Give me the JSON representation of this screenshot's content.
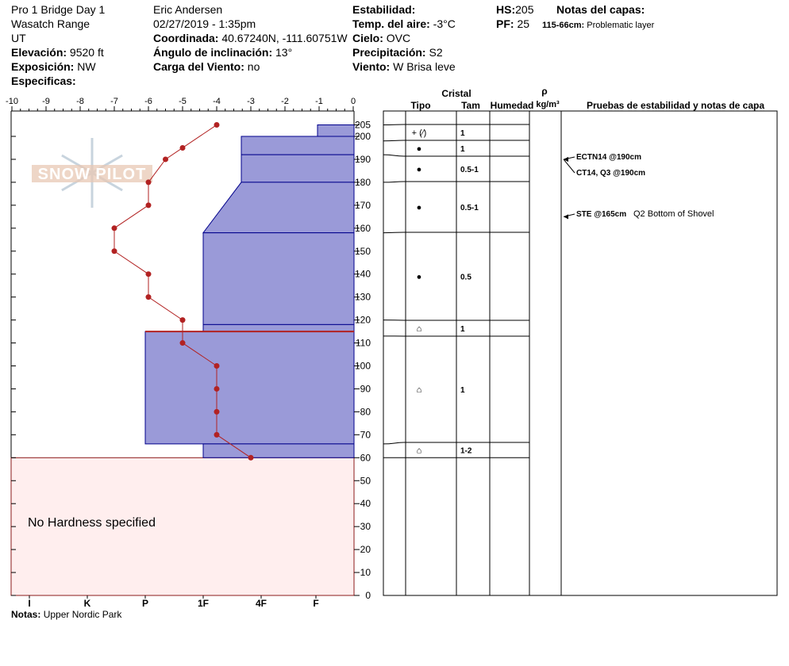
{
  "header": {
    "site_name": "Pro 1 Bridge Day 1",
    "range": "Wasatch Range",
    "state": "UT",
    "elevation_label": "Elevación:",
    "elevation_value": "9520 ft",
    "aspect_label": "Exposición:",
    "aspect_value": "NW",
    "specifics_label": "Especificas:",
    "observer": "Eric Andersen",
    "datetime": "02/27/2019 - 1:35pm",
    "coord_label": "Coordinada:",
    "coord_value": "40.67240N, -111.60751W",
    "incline_label": "Ángulo de inclinación:",
    "incline_value": "13°",
    "wind_load_label": "Carga del Viento:",
    "wind_load_value": "no",
    "stability_label": "Estabilidad:",
    "air_temp_label": "Temp. del aire:",
    "air_temp_value": "-3°C",
    "sky_label": "Cielo:",
    "sky_value": "OVC",
    "precip_label": "Precipitación:",
    "precip_value": "S2",
    "wind_label": "Viento:",
    "wind_value": "W Brisa leve",
    "hs_label": "HS:",
    "hs_value": "205",
    "pf_label": "PF:",
    "pf_value": "25",
    "layer_notes_label": "Notas del capas:",
    "layer_note_range": "115-66cm:",
    "layer_note_text": "Problematic layer"
  },
  "watermark": "SNOW PILOT",
  "no_hardness_text": "No Hardness specified",
  "notes_label": "Notas:",
  "notes_value": "Upper Nordic Park",
  "table_headers": {
    "crystal": "Cristal",
    "type": "Tipo",
    "size": "Tam",
    "moisture": "Humedad",
    "rho": "ρ",
    "density_unit": "kg/m³",
    "tests": "Pruebas de estabilidad y notas de capa"
  },
  "colors": {
    "hardness_fill": "#9a9ad8",
    "hardness_stroke": "#00008b",
    "temp_line": "#b22222",
    "no_hardness_fill": "#ffeeee",
    "problem_layer": "#b22222",
    "watermark": "#c8d4de"
  },
  "chart_data": {
    "type": "snow_profile",
    "height_axis": {
      "min": 0,
      "max": 215,
      "ticks": [
        0,
        10,
        20,
        30,
        40,
        50,
        60,
        70,
        80,
        90,
        100,
        110,
        120,
        130,
        140,
        150,
        160,
        170,
        180,
        190,
        200,
        205
      ],
      "tick_labels": [
        "0",
        "10",
        "20",
        "30",
        "40",
        "50",
        "60",
        "70",
        "80",
        "90",
        "100",
        "110",
        "120",
        "130",
        "140",
        "150",
        "160",
        "170",
        "180",
        "190",
        "200",
        "205"
      ]
    },
    "temperature_axis": {
      "min": -10,
      "max": 0,
      "ticks": [
        -10,
        -9,
        -8,
        -7,
        -6,
        -5,
        -4,
        -3,
        -2,
        -1,
        0
      ],
      "tick_labels": [
        "-10",
        "-9",
        "-8",
        "-7",
        "-6",
        "-5",
        "-4",
        "-3",
        "-2",
        "-1",
        "0"
      ]
    },
    "hardness_axis": {
      "labels": [
        "I",
        "K",
        "P",
        "1F",
        "4F",
        "F"
      ]
    },
    "temperature_profile": [
      {
        "h": 205,
        "t": -4
      },
      {
        "h": 195,
        "t": -5
      },
      {
        "h": 190,
        "t": -5.5
      },
      {
        "h": 180,
        "t": -6
      },
      {
        "h": 170,
        "t": -6
      },
      {
        "h": 160,
        "t": -7
      },
      {
        "h": 150,
        "t": -7
      },
      {
        "h": 140,
        "t": -6
      },
      {
        "h": 130,
        "t": -6
      },
      {
        "h": 120,
        "t": -5
      },
      {
        "h": 110,
        "t": -5
      },
      {
        "h": 100,
        "t": -4
      },
      {
        "h": 90,
        "t": -4
      },
      {
        "h": 80,
        "t": -4
      },
      {
        "h": 70,
        "t": -4
      },
      {
        "h": 60,
        "t": -3
      }
    ],
    "hardness_layers": [
      {
        "top": 205,
        "bottom": 200,
        "top_hardness": "F",
        "bottom_hardness": "F"
      },
      {
        "top": 200,
        "bottom": 192,
        "top_hardness": "4F",
        "bottom_hardness": "4F"
      },
      {
        "top": 192,
        "bottom": 180,
        "top_hardness": "4F",
        "bottom_hardness": "4F"
      },
      {
        "top": 180,
        "bottom": 158,
        "top_hardness": "4F",
        "bottom_hardness": "1F"
      },
      {
        "top": 158,
        "bottom": 118,
        "top_hardness": "1F",
        "bottom_hardness": "1F"
      },
      {
        "top": 118,
        "bottom": 115,
        "top_hardness": "1F",
        "bottom_hardness": "1F"
      },
      {
        "top": 115,
        "bottom": 66,
        "top_hardness": "P",
        "bottom_hardness": "P"
      },
      {
        "top": 66,
        "bottom": 60,
        "top_hardness": "1F",
        "bottom_hardness": "1F"
      }
    ],
    "problematic_layer": {
      "top": 115,
      "bottom": 66
    },
    "no_hardness_below": 60,
    "crystal_layers": [
      {
        "top": 205,
        "bottom": 198,
        "type_symbol": "+ (⁄)",
        "size": "1",
        "moisture": ""
      },
      {
        "top": 198,
        "bottom": 192,
        "type_symbol": "●",
        "size": "1",
        "moisture": ""
      },
      {
        "top": 192,
        "bottom": 180,
        "type_symbol": "●",
        "size": "0.5-1",
        "moisture": ""
      },
      {
        "top": 180,
        "bottom": 158,
        "type_symbol": "●",
        "size": "0.5-1",
        "moisture": ""
      },
      {
        "top": 158,
        "bottom": 120,
        "type_symbol": "●",
        "size": "0.5",
        "moisture": ""
      },
      {
        "top": 120,
        "bottom": 113,
        "type_symbol": "⌂",
        "size": "1",
        "moisture": ""
      },
      {
        "top": 113,
        "bottom": 66,
        "type_symbol": "⌂",
        "size": "1",
        "moisture": ""
      },
      {
        "top": 66,
        "bottom": 60,
        "type_symbol": "⌂",
        "size": "1-2",
        "moisture": ""
      }
    ],
    "stability_tests": [
      {
        "code": "ECTN14 @190cm",
        "note": "",
        "h": 190
      },
      {
        "code": "CT14, Q3 @190cm",
        "note": "",
        "h": 190
      },
      {
        "code": "STE @165cm",
        "note": "Q2 Bottom of Shovel",
        "h": 165
      }
    ]
  }
}
